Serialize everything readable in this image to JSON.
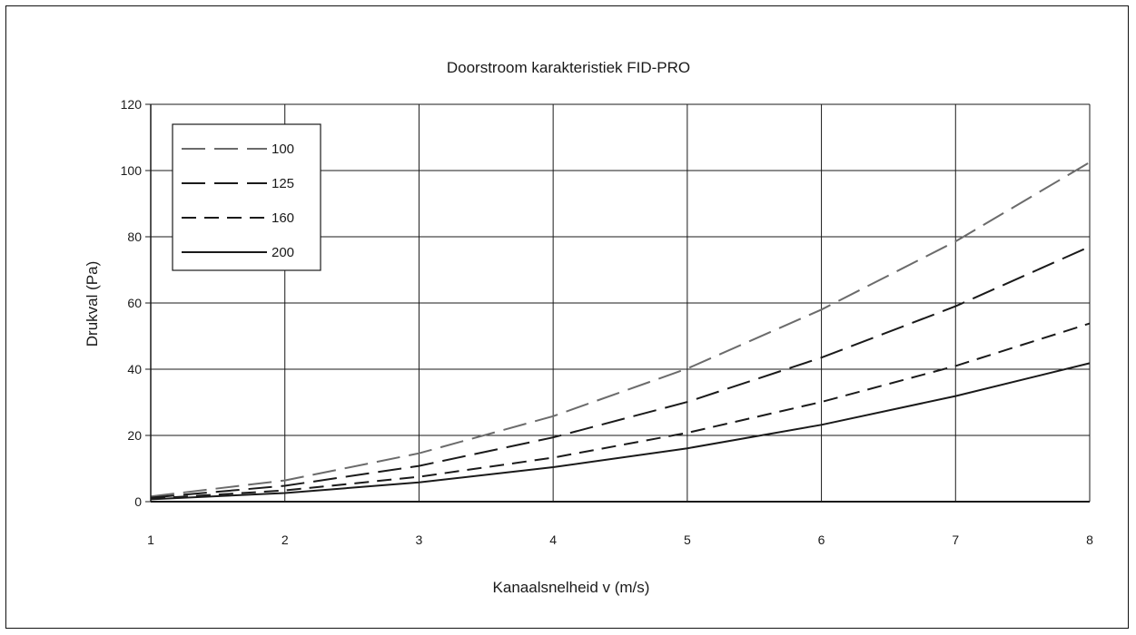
{
  "chart_data": {
    "type": "line",
    "title": "Doorstroom karakteristiek FID-PRO",
    "xlabel": "Kanaalsnelheid v (m/s)",
    "ylabel": "Drukval (Pa)",
    "x": [
      1,
      2,
      3,
      4,
      5,
      6,
      7,
      8
    ],
    "xlim": [
      1,
      8
    ],
    "ylim": [
      0,
      120
    ],
    "xticks": [
      "1",
      "2",
      "3",
      "4",
      "5",
      "6",
      "7",
      "8"
    ],
    "yticks": [
      "0",
      "20",
      "40",
      "60",
      "80",
      "100",
      "120"
    ],
    "grid": true,
    "legend_position": "top-left",
    "series": [
      {
        "name": "100",
        "values": [
          1.6,
          6.4,
          14.6,
          25.8,
          40.2,
          58.0,
          78.6,
          102.5
        ],
        "color": "#6b6b6b",
        "dash": "long"
      },
      {
        "name": "125",
        "values": [
          1.2,
          4.8,
          10.8,
          19.4,
          30.1,
          43.5,
          59.0,
          77.0
        ],
        "color": "#1a1a1a",
        "dash": "long"
      },
      {
        "name": "160",
        "values": [
          0.9,
          3.4,
          7.5,
          13.3,
          20.8,
          30.1,
          41.0,
          53.8
        ],
        "color": "#1a1a1a",
        "dash": "medium"
      },
      {
        "name": "200",
        "values": [
          0.7,
          2.6,
          5.8,
          10.4,
          16.1,
          23.2,
          31.9,
          41.8
        ],
        "color": "#1a1a1a",
        "dash": "solid"
      }
    ]
  }
}
